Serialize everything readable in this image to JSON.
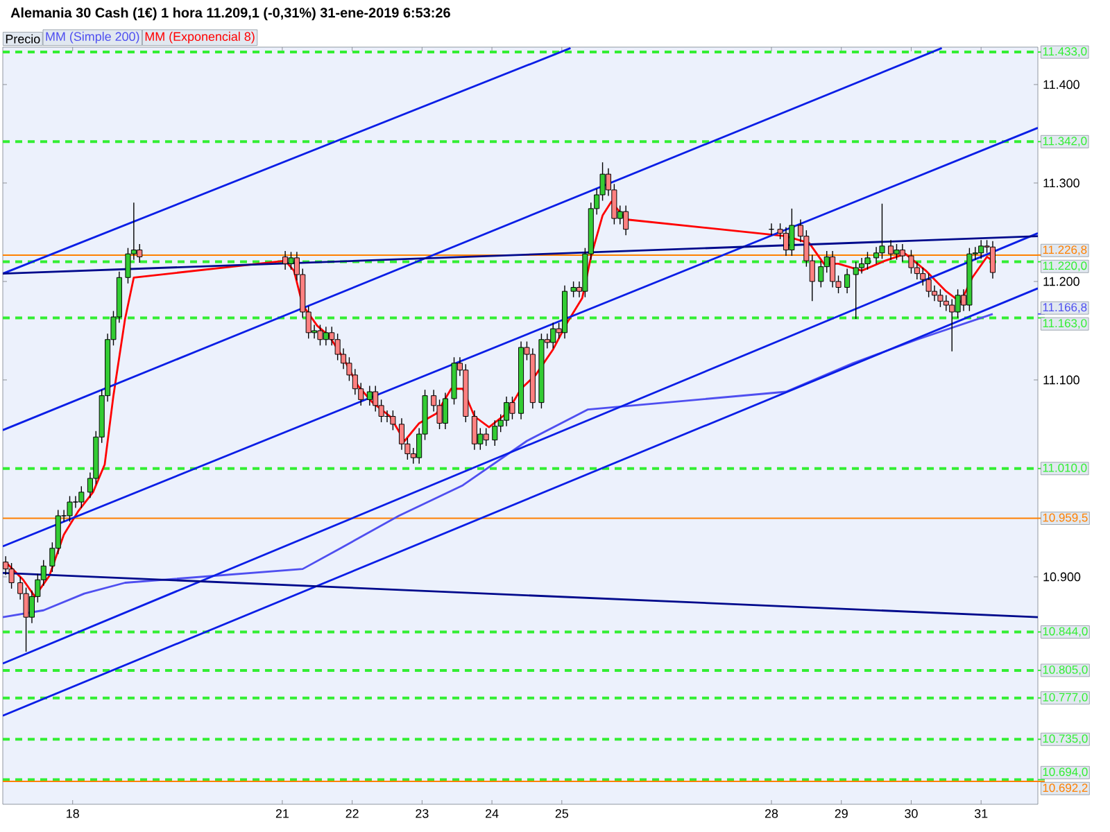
{
  "chart_data": {
    "type": "candlestick",
    "title": "Alemania 30 Cash (1€)   1 hora   11.209,1 (-0,31%)   31-ene-2019 6:53:26",
    "legend": "top left",
    "x": [
      "2019-01-17T01:00",
      "2019-01-17T03:00",
      "2019-01-17T06:00",
      "2019-01-17T08:00",
      "2019-01-17T10:00",
      "2019-01-17T12:00",
      "2019-01-17T14:00",
      "2019-01-17T17:00",
      "2019-01-17T19:00",
      "2019-01-17T21:00",
      "2019-01-17T23:00",
      "2019-01-18T01:00",
      "2019-01-18T03:00",
      "2019-01-18T06:00",
      "2019-01-18T08:00",
      "2019-01-18T10:00",
      "2019-01-18T12:00",
      "2019-01-18T14:00",
      "2019-01-18T16:00",
      "2019-01-18T19:00",
      "2019-01-18T21:00",
      "2019-01-18T23:00",
      "2019-01-21T01:00",
      "2019-01-21T03:00",
      "2019-01-21T05:00",
      "2019-01-21T07:00",
      "2019-01-21T09:00",
      "2019-01-21T11:00",
      "2019-01-21T13:00",
      "2019-01-21T15:00",
      "2019-01-21T17:00",
      "2019-01-21T19:00",
      "2019-01-21T21:00",
      "2019-01-21T23:00",
      "2019-01-22T01:00",
      "2019-01-22T03:00",
      "2019-01-22T06:00",
      "2019-01-22T08:00",
      "2019-01-22T10:00",
      "2019-01-22T12:00",
      "2019-01-22T14:00",
      "2019-01-22T17:00",
      "2019-01-22T19:00",
      "2019-01-22T21:00",
      "2019-01-22T23:00",
      "2019-01-23T01:00",
      "2019-01-23T04:00",
      "2019-01-23T06:00",
      "2019-01-23T08:00",
      "2019-01-23T11:00",
      "2019-01-23T13:00",
      "2019-01-23T15:00",
      "2019-01-23T18:00",
      "2019-01-23T20:00",
      "2019-01-23T22:00",
      "2019-01-24T01:00",
      "2019-01-24T03:00",
      "2019-01-24T05:00",
      "2019-01-24T07:00",
      "2019-01-24T10:00",
      "2019-01-24T12:00",
      "2019-01-24T14:00",
      "2019-01-24T17:00",
      "2019-01-24T19:00",
      "2019-01-24T21:00",
      "2019-01-24T23:00",
      "2019-01-25T01:00",
      "2019-01-25T04:00",
      "2019-01-25T06:00",
      "2019-01-25T08:00",
      "2019-01-25T10:00",
      "2019-01-25T12:00",
      "2019-01-25T14:00",
      "2019-01-25T16:00",
      "2019-01-25T18:00",
      "2019-01-25T20:00",
      "2019-01-25T22:00",
      "2019-01-28T00:00",
      "2019-01-28T03:00",
      "2019-01-28T05:00",
      "2019-01-28T07:00",
      "2019-01-28T10:00",
      "2019-01-28T12:00",
      "2019-01-28T14:00",
      "2019-01-28T17:00",
      "2019-01-28T19:00",
      "2019-01-28T21:00",
      "2019-01-28T23:00",
      "2019-01-29T02:00",
      "2019-01-29T05:00",
      "2019-01-29T07:00",
      "2019-01-29T09:00",
      "2019-01-29T12:00",
      "2019-01-29T14:00",
      "2019-01-29T17:00",
      "2019-01-29T19:00",
      "2019-01-29T21:00",
      "2019-01-30T00:00",
      "2019-01-30T02:00",
      "2019-01-30T04:00",
      "2019-01-30T06:00",
      "2019-01-30T08:00",
      "2019-01-30T10:00",
      "2019-01-30T12:00",
      "2019-01-30T14:00",
      "2019-01-30T16:00",
      "2019-01-30T18:00",
      "2019-01-30T20:00",
      "2019-01-30T22:00",
      "2019-01-31T00:00",
      "2019-01-31T02:00",
      "2019-01-31T04:00"
    ],
    "xlim": [
      "2019-01-17T00:00",
      "2019-01-31T19:30"
    ],
    "ylim": [
      10669,
      11438
    ],
    "xticks": [
      {
        "value": "2019-01-18",
        "label": "18"
      },
      {
        "value": "2019-01-21",
        "label": "21"
      },
      {
        "value": "2019-01-22",
        "label": "22"
      },
      {
        "value": "2019-01-23",
        "label": "23"
      },
      {
        "value": "2019-01-24",
        "label": "24"
      },
      {
        "value": "2019-01-25",
        "label": "25"
      },
      {
        "value": "2019-01-28",
        "label": "28"
      },
      {
        "value": "2019-01-29",
        "label": "29"
      },
      {
        "value": "2019-01-30",
        "label": "30"
      },
      {
        "value": "2019-01-31",
        "label": "31"
      }
    ],
    "yticks": [
      {
        "value": 10900,
        "label": "10.900"
      },
      {
        "value": 11100,
        "label": "11.100"
      },
      {
        "value": 11200,
        "label": "11.200"
      },
      {
        "value": 11300,
        "label": "11.300"
      },
      {
        "value": 11400,
        "label": "11.400"
      }
    ],
    "series": [
      {
        "name": "Precio",
        "color": "#000000",
        "ohlc": [
          [
            10915,
            10921,
            10902,
            10908
          ],
          [
            10908,
            10914,
            10888,
            10894
          ],
          [
            10894,
            10900,
            10877,
            10883
          ],
          [
            10883,
            10889,
            10824,
            10859
          ],
          [
            10859,
            10886,
            10853,
            10880
          ],
          [
            10880,
            10903,
            10874,
            10897
          ],
          [
            10897,
            10917,
            10891,
            10911
          ],
          [
            10911,
            10935,
            10905,
            10929
          ],
          [
            10929,
            10968,
            10923,
            10962
          ],
          [
            10962,
            10968,
            10956,
            10962
          ],
          [
            10962,
            10982,
            10956,
            10976
          ],
          [
            10976,
            10982,
            10970,
            10976
          ],
          [
            10976,
            10992,
            10970,
            10986
          ],
          [
            10986,
            11006,
            10980,
            11000
          ],
          [
            11000,
            11048,
            10994,
            11042
          ],
          [
            11042,
            11090,
            11036,
            11084
          ],
          [
            11084,
            11147,
            11078,
            11141
          ],
          [
            11141,
            11170,
            11135,
            11164
          ],
          [
            11164,
            11210,
            11158,
            11204
          ],
          [
            11204,
            11234,
            11198,
            11228
          ],
          [
            11228,
            11280,
            11222,
            11232
          ],
          [
            11232,
            11238,
            11219,
            11225
          ],
          [
            11225,
            11231,
            11212,
            11218
          ],
          [
            11218,
            11230,
            11212,
            11224
          ],
          [
            11224,
            11230,
            11201,
            11207
          ],
          [
            11207,
            11213,
            11163,
            11169
          ],
          [
            11169,
            11175,
            11142,
            11148
          ],
          [
            11148,
            11156,
            11142,
            11150
          ],
          [
            11150,
            11156,
            11135,
            11141
          ],
          [
            11141,
            11154,
            11135,
            11148
          ],
          [
            11148,
            11154,
            11135,
            11141
          ],
          [
            11141,
            11147,
            11120,
            11126
          ],
          [
            11126,
            11132,
            11111,
            11117
          ],
          [
            11117,
            11123,
            11099,
            11105
          ],
          [
            11105,
            11111,
            11085,
            11091
          ],
          [
            11091,
            11097,
            11074,
            11080
          ],
          [
            11080,
            11094,
            11074,
            11088
          ],
          [
            11088,
            11094,
            11068,
            11074
          ],
          [
            11074,
            11080,
            11057,
            11063
          ],
          [
            11063,
            11069,
            11057,
            11063
          ],
          [
            11063,
            11069,
            11049,
            11055
          ],
          [
            11055,
            11061,
            11029,
            11035
          ],
          [
            11035,
            11041,
            11019,
            11025
          ],
          [
            11025,
            11031,
            11015,
            11021
          ],
          [
            11021,
            11051,
            11015,
            11045
          ],
          [
            11045,
            11090,
            11039,
            11084
          ],
          [
            11084,
            11090,
            11068,
            11074
          ],
          [
            11074,
            11080,
            11050,
            11056
          ],
          [
            11056,
            11087,
            11050,
            11081
          ],
          [
            11081,
            11123,
            11075,
            11117
          ],
          [
            11117,
            11123,
            11104,
            11110
          ],
          [
            11110,
            11116,
            11057,
            11063
          ],
          [
            11063,
            11069,
            11029,
            11035
          ],
          [
            11035,
            11051,
            11029,
            11045
          ],
          [
            11045,
            11051,
            11033,
            11039
          ],
          [
            11039,
            11059,
            11033,
            11053
          ],
          [
            11053,
            11065,
            11047,
            11059
          ],
          [
            11059,
            11083,
            11053,
            11077
          ],
          [
            11077,
            11083,
            11060,
            11066
          ],
          [
            11066,
            11139,
            11060,
            11133
          ],
          [
            11133,
            11139,
            11120,
            11126
          ],
          [
            11126,
            11132,
            11071,
            11077
          ],
          [
            11077,
            11147,
            11071,
            11141
          ],
          [
            11141,
            11147,
            11132,
            11138
          ],
          [
            11138,
            11158,
            11132,
            11152
          ],
          [
            11152,
            11158,
            11142,
            11148
          ],
          [
            11148,
            11196,
            11142,
            11190
          ],
          [
            11190,
            11200,
            11184,
            11194
          ],
          [
            11194,
            11200,
            11184,
            11190
          ],
          [
            11190,
            11234,
            11184,
            11228
          ],
          [
            11228,
            11280,
            11222,
            11274
          ],
          [
            11274,
            11294,
            11268,
            11288
          ],
          [
            11288,
            11321,
            11282,
            11309
          ],
          [
            11309,
            11315,
            11287,
            11293
          ],
          [
            11293,
            11299,
            11258,
            11264
          ],
          [
            11264,
            11277,
            11258,
            11271
          ],
          [
            11271,
            11277,
            11247,
            11253
          ],
          [
            11253,
            11259,
            11247,
            11253
          ],
          [
            11253,
            11259,
            11243,
            11249
          ],
          [
            11249,
            11255,
            11226,
            11232
          ],
          [
            11232,
            11274,
            11226,
            11257
          ],
          [
            11257,
            11263,
            11240,
            11246
          ],
          [
            11246,
            11252,
            11215,
            11221
          ],
          [
            11221,
            11227,
            11180,
            11200
          ],
          [
            11200,
            11221,
            11194,
            11215
          ],
          [
            11215,
            11231,
            11209,
            11225
          ],
          [
            11225,
            11231,
            11194,
            11200
          ],
          [
            11200,
            11206,
            11188,
            11194
          ],
          [
            11194,
            11213,
            11188,
            11207
          ],
          [
            11207,
            11220,
            11162,
            11214
          ],
          [
            11214,
            11224,
            11208,
            11218
          ],
          [
            11218,
            11230,
            11212,
            11224
          ],
          [
            11224,
            11235,
            11218,
            11229
          ],
          [
            11229,
            11279,
            11223,
            11236
          ],
          [
            11236,
            11242,
            11222,
            11228
          ],
          [
            11228,
            11238,
            11222,
            11232
          ],
          [
            11232,
            11238,
            11220,
            11226
          ],
          [
            11226,
            11232,
            11208,
            11214
          ],
          [
            11214,
            11220,
            11202,
            11208
          ],
          [
            11208,
            11214,
            11196,
            11202
          ],
          [
            11202,
            11208,
            11184,
            11190
          ],
          [
            11190,
            11196,
            11180,
            11186
          ],
          [
            11186,
            11192,
            11174,
            11180
          ],
          [
            11180,
            11186,
            11170,
            11176
          ],
          [
            11176,
            11182,
            11129,
            11169
          ],
          [
            11169,
            11192,
            11163,
            11186
          ],
          [
            11186,
            11192,
            11170,
            11176
          ],
          [
            11176,
            11234,
            11170,
            11228
          ],
          [
            11228,
            11235,
            11222,
            11229
          ],
          [
            11229,
            11242,
            11223,
            11236
          ],
          [
            11236,
            11242,
            11229,
            11235
          ],
          [
            11235,
            11241,
            11203,
            11209.1
          ]
        ]
      },
      {
        "name": "MM (Simple 200)",
        "type": "line",
        "color": "#4f4ff0",
        "x": [
          "2019-01-17T00:00",
          "2019-01-17T14:00",
          "2019-01-18T04:00",
          "2019-01-18T18:00",
          "2019-01-21T07:00",
          "2019-01-21T20:00",
          "2019-01-22T16:00",
          "2019-01-23T14:00",
          "2019-01-24T12:00",
          "2019-01-25T09:00",
          "2019-01-28T05:00",
          "2019-01-29T04:00",
          "2019-01-30T02:00",
          "2019-01-31T04:00"
        ],
        "values": [
          10859,
          10866,
          10883,
          10894,
          10908,
          10929,
          10962,
          10993,
          11038,
          11070,
          11088,
          11117,
          11141,
          11167
        ]
      },
      {
        "name": "MM (Exponencial 8)",
        "type": "line",
        "color": "#ff0000",
        "x": [
          "2019-01-17T01:00",
          "2019-01-17T07:00",
          "2019-01-17T11:00",
          "2019-01-17T16:00",
          "2019-01-17T21:00",
          "2019-01-18T02:00",
          "2019-01-18T07:00",
          "2019-01-18T11:00",
          "2019-01-18T14:00",
          "2019-01-18T18:00",
          "2019-01-18T21:00",
          "2019-01-21T01:00",
          "2019-01-21T04:00",
          "2019-01-21T07:00",
          "2019-01-21T12:00",
          "2019-01-21T16:00",
          "2019-01-21T21:00",
          "2019-01-22T02:00",
          "2019-01-22T07:00",
          "2019-01-22T13:00",
          "2019-01-22T18:00",
          "2019-01-22T23:00",
          "2019-01-23T05:00",
          "2019-01-23T10:00",
          "2019-01-23T14:00",
          "2019-01-23T18:00",
          "2019-01-23T23:00",
          "2019-01-24T05:00",
          "2019-01-24T10:00",
          "2019-01-24T15:00",
          "2019-01-24T21:00",
          "2019-01-25T02:00",
          "2019-01-25T07:00",
          "2019-01-25T10:00",
          "2019-01-25T14:00",
          "2019-01-25T17:00",
          "2019-01-25T22:00",
          "2019-01-28T05:00",
          "2019-01-28T13:00",
          "2019-01-28T18:00",
          "2019-01-28T23:00",
          "2019-01-29T07:00",
          "2019-01-29T15:00",
          "2019-01-29T22:00",
          "2019-01-30T05:00",
          "2019-01-30T12:00",
          "2019-01-30T17:00",
          "2019-01-30T21:00",
          "2019-01-31T02:00",
          "2019-01-31T04:00"
        ],
        "values": [
          10915,
          10897,
          10880,
          10901,
          10943,
          10967,
          10986,
          11014,
          11084,
          11162,
          11204,
          11221,
          11211,
          11176,
          11155,
          11145,
          11122,
          11094,
          11077,
          11063,
          11038,
          11056,
          11066,
          11091,
          11091,
          11063,
          11052,
          11066,
          11091,
          11105,
          11131,
          11159,
          11183,
          11225,
          11267,
          11281,
          11263,
          11246,
          11239,
          11218,
          11218,
          11211,
          11221,
          11228,
          11211,
          11190,
          11179,
          11204,
          11225,
          11221
        ]
      },
      {
        "type": "line",
        "color": "#0a1ee6",
        "x": [
          "2019-01-17T00:00",
          "2019-01-25T03:00"
        ],
        "values": [
          11208,
          11437
        ]
      },
      {
        "type": "line",
        "color": "#0a1ee6",
        "x": [
          "2019-01-17T00:00",
          "2019-01-30T10:30"
        ],
        "values": [
          11049,
          11437
        ]
      },
      {
        "type": "line",
        "color": "#0a1ee6",
        "x": [
          "2019-01-17T00:00",
          "2019-01-31T19:30"
        ],
        "values": [
          10931,
          11356
        ]
      },
      {
        "type": "line",
        "color": "#0a1ee6",
        "x": [
          "2019-01-17T00:00",
          "2019-01-31T19:30"
        ],
        "values": [
          10812,
          11249
        ]
      },
      {
        "type": "line",
        "color": "#0a1ee6",
        "x": [
          "2019-01-17T00:00",
          "2019-01-31T19:30"
        ],
        "values": [
          10759,
          11193
        ]
      },
      {
        "type": "line",
        "color": "#000a8c",
        "x": [
          "2019-01-17T00:00",
          "2019-01-31T19:30"
        ],
        "values": [
          11208,
          11246
        ]
      },
      {
        "type": "line",
        "color": "#000a8c",
        "x": [
          "2019-01-17T00:00",
          "2019-01-31T19:30"
        ],
        "values": [
          10904,
          10859
        ]
      }
    ],
    "ref_lines": [
      {
        "axis": "y",
        "value": 11433,
        "label": "11.433,0",
        "color": "#33ee33",
        "line_style": "dashed"
      },
      {
        "axis": "y",
        "value": 11342,
        "label": "11.342,0",
        "color": "#33ee33",
        "line_style": "dashed"
      },
      {
        "axis": "y",
        "value": 11226.8,
        "label": "11.226,8",
        "color": "#ff8000",
        "line_style": "solid"
      },
      {
        "axis": "y",
        "value": 11220,
        "label": "11.220,0",
        "color": "#33ee33",
        "line_style": "dashed"
      },
      {
        "axis": "y",
        "value": 11163,
        "label": "11.163,0",
        "color": "#33ee33",
        "line_style": "dashed"
      },
      {
        "axis": "y",
        "value": 11010,
        "label": "11.010,0",
        "color": "#33ee33",
        "line_style": "dashed"
      },
      {
        "axis": "y",
        "value": 10959.5,
        "label": "10.959,5",
        "color": "#ff8000",
        "line_style": "solid"
      },
      {
        "axis": "y",
        "value": 10844,
        "label": "10.844,0",
        "color": "#33ee33",
        "line_style": "dashed"
      },
      {
        "axis": "y",
        "value": 10805,
        "label": "10.805,0",
        "color": "#33ee33",
        "line_style": "dashed"
      },
      {
        "axis": "y",
        "value": 10777,
        "label": "10.777,0",
        "color": "#33ee33",
        "line_style": "dashed"
      },
      {
        "axis": "y",
        "value": 10735,
        "label": "10.735,0",
        "color": "#33ee33",
        "line_style": "dashed"
      },
      {
        "axis": "y",
        "value": 10694,
        "label": "10.694,0",
        "color": "#33ee33",
        "line_style": "dashed"
      },
      {
        "axis": "y",
        "value": 10692.2,
        "label": "10.692,2",
        "color": "#ff8000",
        "line_style": "solid"
      }
    ],
    "annotations": [
      "11.166,8"
    ]
  }
}
